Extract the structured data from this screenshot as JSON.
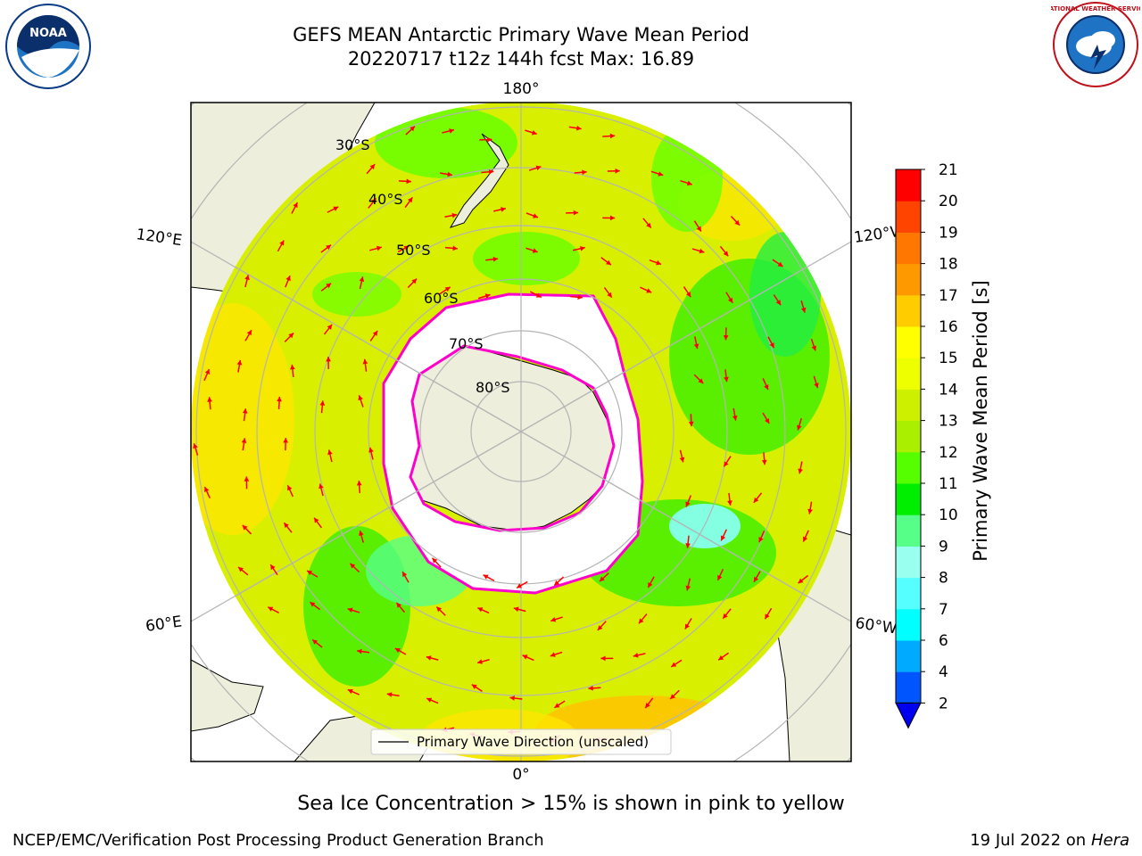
{
  "title_line1": "GEFS MEAN Antarctic Primary Wave Mean Period",
  "title_line2": "20220717 t12z 144h fcst   Max: 16.89",
  "caption": "Sea Ice Concentration > 15% is shown in pink to yellow",
  "footer_left": "NCEP/EMC/Verification Post Processing Product Generation Branch",
  "footer_date": "19 Jul 2022 on ",
  "footer_host": "Hera",
  "legend_label": "Primary Wave Direction (unscaled)",
  "lon_labels": {
    "top": "180°",
    "bottom": "0°",
    "ul": "120°E",
    "ur": "120°W",
    "ll": "60°E",
    "lr": "60°W"
  },
  "lat_labels": [
    "30°S",
    "40°S",
    "50°S",
    "60°S",
    "70°S",
    "80°S"
  ],
  "colorbar": {
    "label": "Primary Wave Mean Period [s]",
    "ticks": [
      "2",
      "4",
      "6",
      "7",
      "8",
      "9",
      "10",
      "11",
      "12",
      "13",
      "14",
      "15",
      "16",
      "17",
      "18",
      "19",
      "20",
      "21"
    ]
  },
  "logos": {
    "noaa": "NOAA",
    "nws": "NATIONAL WEATHER SERVICE"
  },
  "colors": {
    "ocean_bg": "#d8f000",
    "land": "#eeeedc",
    "ice": "#ffffff",
    "ice_edge": "#ff00cc",
    "arrow": "#ff0000",
    "grid": "#b4b4b4"
  }
}
